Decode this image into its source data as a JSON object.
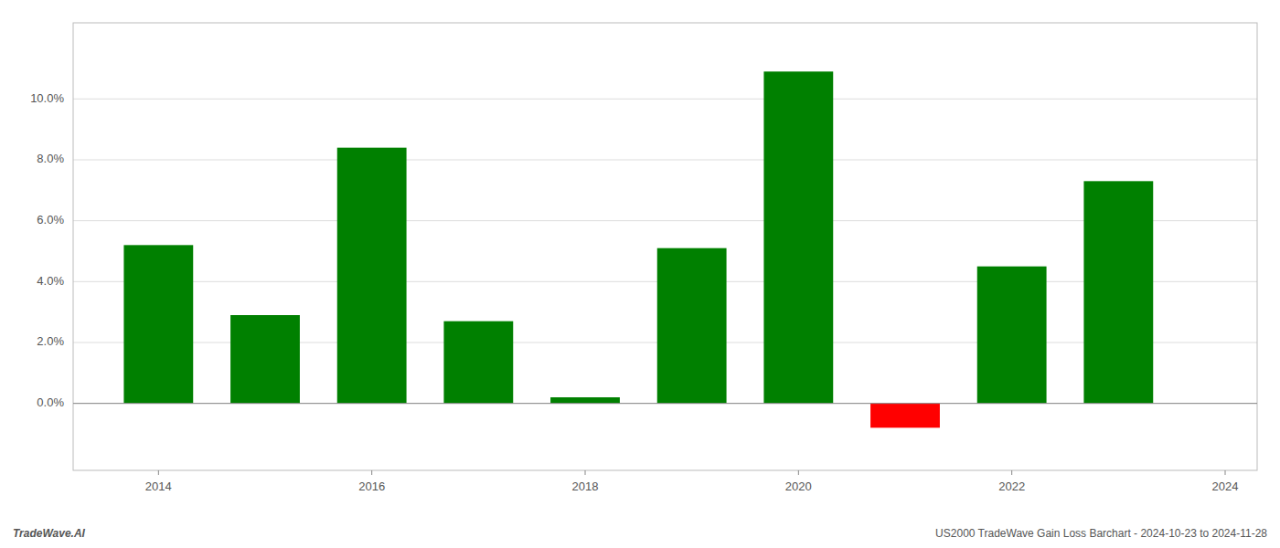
{
  "chart_data": {
    "type": "bar",
    "x": [
      2014,
      2015,
      2016,
      2017,
      2018,
      2019,
      2020,
      2021,
      2022,
      2023
    ],
    "values": [
      0.052,
      0.029,
      0.084,
      0.027,
      0.002,
      0.051,
      0.109,
      -0.008,
      0.045,
      0.073
    ],
    "colors": [
      "#008000",
      "#008000",
      "#008000",
      "#008000",
      "#008000",
      "#008000",
      "#008000",
      "#ff0000",
      "#008000",
      "#008000"
    ],
    "xlim": [
      2013.2,
      2024.3
    ],
    "xticks": [
      2014,
      2016,
      2018,
      2020,
      2022,
      2024
    ],
    "ylim": [
      -0.022,
      0.125
    ],
    "yticks": [
      {
        "value": 0.0,
        "label": "0.0%"
      },
      {
        "value": 0.02,
        "label": "2.0%"
      },
      {
        "value": 0.04,
        "label": "4.0%"
      },
      {
        "value": 0.06,
        "label": "6.0%"
      },
      {
        "value": 0.08,
        "label": "8.0%"
      },
      {
        "value": 0.1,
        "label": "10.0%"
      }
    ],
    "grid": true,
    "annotations": [
      "TradeWave.AI",
      "US2000 TradeWave Gain Loss Barchart - 2024-10-23 to 2024-11-28"
    ]
  }
}
